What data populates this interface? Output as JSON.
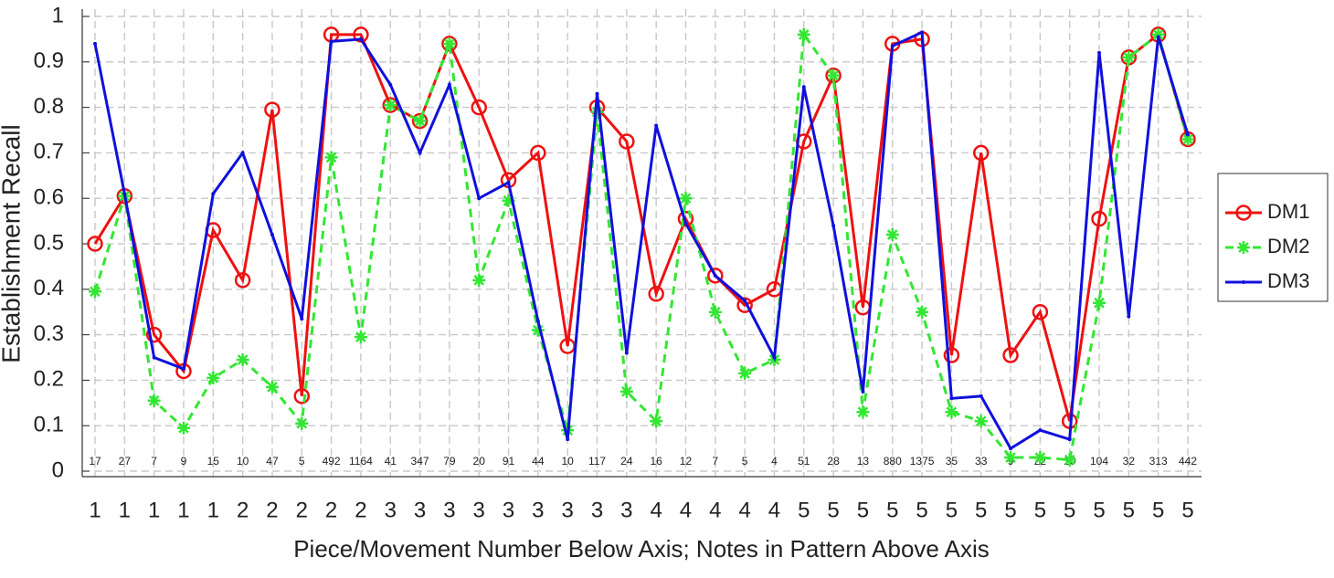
{
  "chart_data": {
    "type": "line",
    "y_label": "Establishment Recall",
    "x_label": "Piece/Movement Number Below Axis; Notes in Pattern Above Axis",
    "categories": [
      "1",
      "1",
      "1",
      "1",
      "1",
      "2",
      "2",
      "2",
      "2",
      "2",
      "3",
      "3",
      "3",
      "3",
      "3",
      "3",
      "3",
      "3",
      "3",
      "4",
      "4",
      "4",
      "4",
      "4",
      "5",
      "5",
      "5",
      "5",
      "5",
      "5",
      "5",
      "5",
      "5",
      "5",
      "5",
      "5",
      "5",
      "5"
    ],
    "notes": [
      "17",
      "27",
      "7",
      "9",
      "15",
      "10",
      "47",
      "5",
      "492",
      "1164",
      "41",
      "347",
      "79",
      "20",
      "91",
      "44",
      "10",
      "117",
      "24",
      "16",
      "12",
      "7",
      "5",
      "4",
      "51",
      "28",
      "13",
      "880",
      "1375",
      "35",
      "33",
      "9",
      "22",
      "10",
      "104",
      "32",
      "313",
      "442"
    ],
    "series": [
      {
        "name": "DM1",
        "color": "#ee1111",
        "marker": "circle",
        "dash": "solid",
        "values": [
          0.5,
          0.605,
          0.3,
          0.22,
          0.53,
          0.42,
          0.795,
          0.165,
          0.96,
          0.96,
          0.805,
          0.77,
          0.94,
          0.8,
          0.64,
          0.7,
          0.275,
          0.8,
          0.725,
          0.39,
          0.555,
          0.43,
          0.365,
          0.4,
          0.725,
          0.87,
          0.36,
          0.94,
          0.95,
          0.255,
          0.7,
          0.255,
          0.35,
          0.11,
          0.555,
          0.91,
          0.96,
          0.73
        ]
      },
      {
        "name": "DM2",
        "color": "#33e633",
        "marker": "star",
        "dash": "dashed",
        "values": [
          0.395,
          0.605,
          0.155,
          0.095,
          0.205,
          0.245,
          0.185,
          0.105,
          0.69,
          0.295,
          0.805,
          0.77,
          0.94,
          0.42,
          0.595,
          0.31,
          0.09,
          0.79,
          0.175,
          0.11,
          0.6,
          0.35,
          0.215,
          0.245,
          0.96,
          0.87,
          0.13,
          0.52,
          0.35,
          0.13,
          0.11,
          0.03,
          0.03,
          0.025,
          0.37,
          0.91,
          0.96,
          0.73
        ]
      },
      {
        "name": "DM3",
        "color": "#1010dd",
        "marker": "dot",
        "dash": "solid",
        "values": [
          0.94,
          0.61,
          0.25,
          0.225,
          0.61,
          0.7,
          0.52,
          0.335,
          0.945,
          0.95,
          0.85,
          0.7,
          0.85,
          0.6,
          0.635,
          0.33,
          0.07,
          0.83,
          0.26,
          0.76,
          0.545,
          0.43,
          0.375,
          0.25,
          0.845,
          0.54,
          0.175,
          0.935,
          0.965,
          0.16,
          0.165,
          0.05,
          0.09,
          0.07,
          0.92,
          0.34,
          0.955,
          0.74
        ]
      }
    ],
    "ylim": [
      0,
      1
    ],
    "yticks": [
      0,
      {
        "value": 0.1,
        "label": "0.1"
      },
      {
        "value": 0.2,
        "label": "0.2"
      },
      {
        "value": 0.3,
        "label": "0.3"
      },
      {
        "value": 0.4,
        "label": "0.4"
      },
      {
        "value": 0.5,
        "label": "0.5"
      },
      {
        "value": 0.6,
        "label": "0.6"
      },
      {
        "value": 0.7,
        "label": "0.7"
      },
      {
        "value": 0.8,
        "label": "0.8"
      },
      {
        "value": 0.9,
        "label": "0.9"
      },
      1
    ],
    "grid": true,
    "legend": "right"
  }
}
